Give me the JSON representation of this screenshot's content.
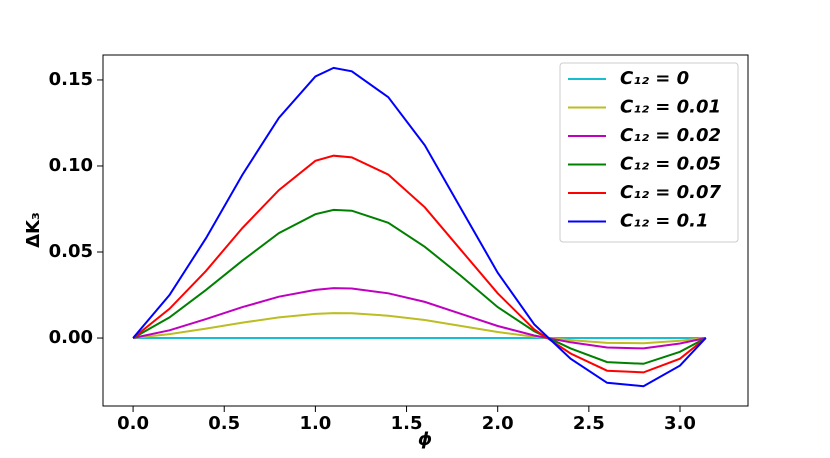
{
  "chart_data": {
    "type": "line",
    "xlabel": "ϕ",
    "ylabel": "ΔK₃",
    "x": [
      0,
      0.2,
      0.4,
      0.6,
      0.8,
      1.0,
      1.1,
      1.2,
      1.4,
      1.6,
      1.8,
      2.0,
      2.2,
      2.4,
      2.6,
      2.8,
      3.0,
      3.1416
    ],
    "series": [
      {
        "name": "C₁₂ = 0",
        "color": "#17becf",
        "values": [
          0,
          0,
          0,
          0,
          0,
          0,
          0,
          0,
          0,
          0,
          0,
          0,
          0,
          0,
          0,
          0,
          0,
          0
        ]
      },
      {
        "name": "C₁₂ = 0.01",
        "color": "#bcbd22",
        "values": [
          0,
          0.0023,
          0.0055,
          0.009,
          0.012,
          0.014,
          0.0145,
          0.0144,
          0.013,
          0.0105,
          0.007,
          0.0035,
          0.0008,
          -0.0012,
          -0.0028,
          -0.003,
          -0.0016,
          0
        ]
      },
      {
        "name": "C₁₂ = 0.02",
        "color": "#bf00bf",
        "values": [
          0,
          0.0045,
          0.011,
          0.018,
          0.024,
          0.028,
          0.029,
          0.0288,
          0.026,
          0.021,
          0.014,
          0.007,
          0.0015,
          -0.0025,
          -0.0055,
          -0.006,
          -0.0032,
          0
        ]
      },
      {
        "name": "C₁₂ = 0.05",
        "color": "#008000",
        "values": [
          0,
          0.012,
          0.028,
          0.045,
          0.061,
          0.072,
          0.0745,
          0.074,
          0.067,
          0.053,
          0.036,
          0.018,
          0.004,
          -0.006,
          -0.014,
          -0.015,
          -0.008,
          0
        ]
      },
      {
        "name": "C₁₂ = 0.07",
        "color": "#ff0000",
        "values": [
          0,
          0.017,
          0.039,
          0.064,
          0.086,
          0.103,
          0.106,
          0.105,
          0.095,
          0.076,
          0.051,
          0.026,
          0.005,
          -0.009,
          -0.019,
          -0.02,
          -0.012,
          0
        ]
      },
      {
        "name": "C₁₂ = 0.1",
        "color": "#0000ff",
        "values": [
          0,
          0.025,
          0.058,
          0.095,
          0.128,
          0.152,
          0.157,
          0.155,
          0.14,
          0.112,
          0.075,
          0.038,
          0.008,
          -0.012,
          -0.026,
          -0.028,
          -0.016,
          0
        ]
      }
    ],
    "xlim": [
      -0.165,
      3.373
    ],
    "ylim": [
      -0.0395,
      0.1645
    ],
    "xticks": [
      {
        "value": 0,
        "label": "0.0"
      },
      0.5,
      {
        "value": 1,
        "label": "1.0"
      },
      1.5,
      {
        "value": 2,
        "label": "2.0"
      },
      2.5,
      {
        "value": 3,
        "label": "3.0"
      }
    ],
    "yticks": [
      {
        "value": 0,
        "label": "0.00"
      },
      0.05,
      {
        "value": 0.1,
        "label": "0.10"
      },
      0.15
    ],
    "legend": "upper right"
  }
}
